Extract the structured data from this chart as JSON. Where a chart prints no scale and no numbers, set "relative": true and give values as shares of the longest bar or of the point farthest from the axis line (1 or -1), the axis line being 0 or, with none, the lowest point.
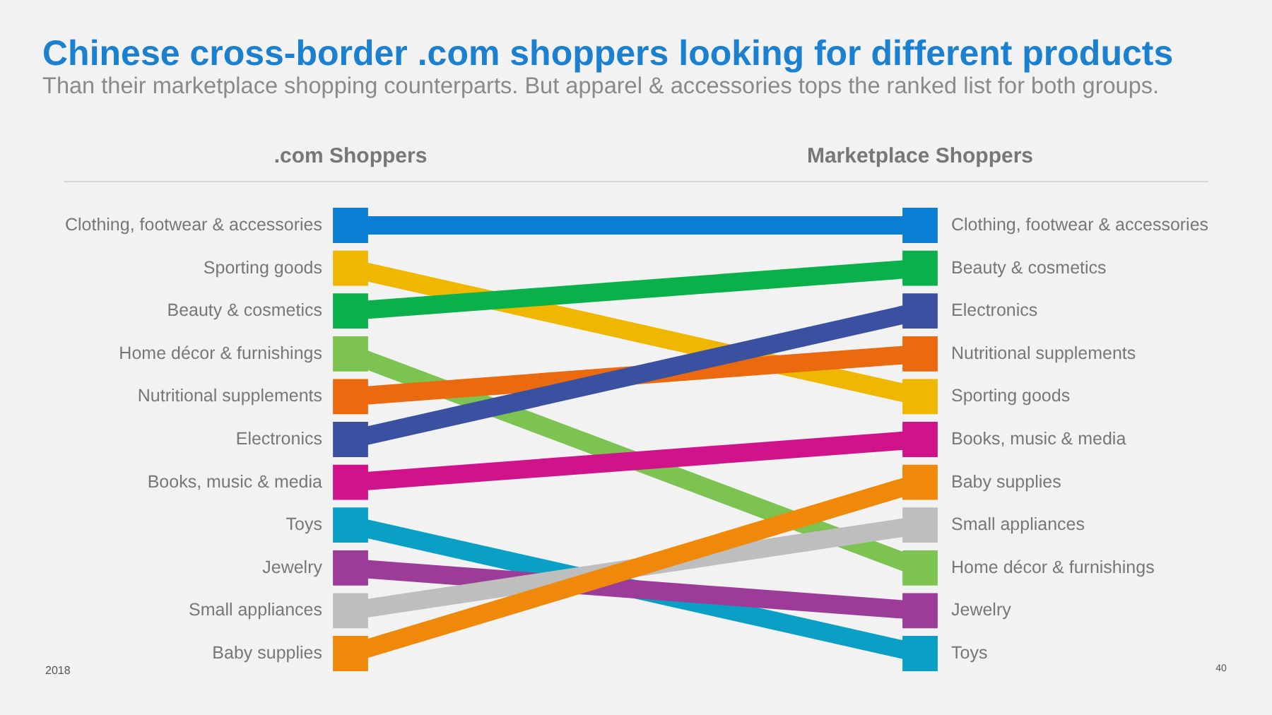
{
  "chart_data": {
    "type": "line",
    "title": "Chinese cross-border .com shoppers looking for different products",
    "subtitle": "Than their marketplace shopping counterparts. But apparel & accessories tops the ranked list for both groups.",
    "categories": [
      ".com Shoppers",
      "Marketplace Shoppers"
    ],
    "relative": true,
    "marker": "square",
    "annotations": [
      "2018",
      "40"
    ],
    "series": [
      {
        "name": "Clothing, footwear & accessories",
        "color": "#0a7ed3",
        "values": [
          1,
          1
        ]
      },
      {
        "name": "Sporting goods",
        "color": "#efb700",
        "values": [
          0.9,
          0.6
        ]
      },
      {
        "name": "Beauty & cosmetics",
        "color": "#0ab14a",
        "values": [
          0.8,
          0.9
        ]
      },
      {
        "name": "Home décor & furnishings",
        "color": "#7dc352",
        "values": [
          0.7,
          0.2
        ]
      },
      {
        "name": "Nutritional supplements",
        "color": "#eb6a10",
        "values": [
          0.6,
          0.7
        ]
      },
      {
        "name": "Electronics",
        "color": "#3a51a1",
        "values": [
          0.5,
          0.8
        ]
      },
      {
        "name": "Books, music & media",
        "color": "#d0138b",
        "values": [
          0.4,
          0.5
        ]
      },
      {
        "name": "Toys",
        "color": "#0a9fc4",
        "values": [
          0.3,
          0
        ]
      },
      {
        "name": "Jewelry",
        "color": "#9c3b98",
        "values": [
          0.2,
          0.1
        ]
      },
      {
        "name": "Small appliances",
        "color": "#bebebe",
        "values": [
          0.1,
          0.3
        ]
      },
      {
        "name": "Baby supplies",
        "color": "#f0890a",
        "values": [
          0,
          0.4
        ]
      }
    ]
  }
}
